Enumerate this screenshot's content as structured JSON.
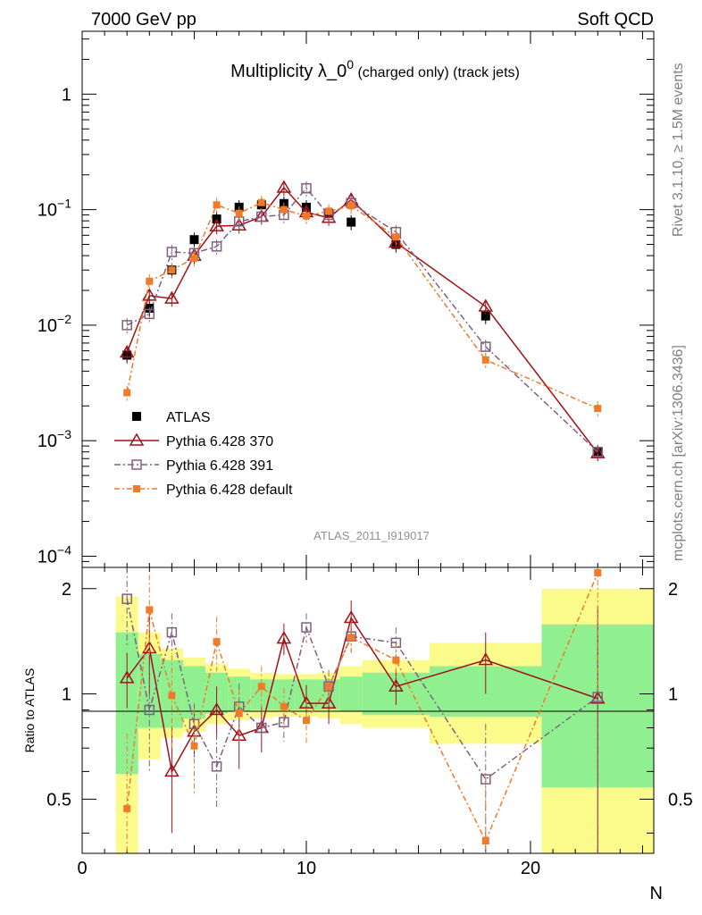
{
  "header": {
    "left": "7000 GeV pp",
    "right": "Soft QCD"
  },
  "side_labels": {
    "rivet": "Rivet 3.1.10, ≥ 1.5M events",
    "mcplots": "mcplots.cern.ch [arXiv:1306.3436]"
  },
  "chart_data": {
    "type": "scatter",
    "title_main": "Multiplicity λ_0",
    "title_sup": "0",
    "title_sub": "(charged only) (track jets)",
    "watermark": "ATLAS_2011_I919017",
    "xlabel": "N",
    "ylabel_ratio": "Ratio to ATLAS",
    "xlim": [
      0,
      25.5
    ],
    "ylim": [
      8e-05,
      3.5
    ],
    "ylim_ratio": [
      0.35,
      2.3
    ],
    "x_ticks": [
      "0",
      "10",
      "20"
    ],
    "y_tick_labels": [
      {
        "v": 1,
        "base": "1",
        "exp": ""
      },
      {
        "v": 0.1,
        "base": "10",
        "exp": "−1"
      },
      {
        "v": 0.01,
        "base": "10",
        "exp": "−2"
      },
      {
        "v": 0.001,
        "base": "10",
        "exp": "−3"
      },
      {
        "v": 0.0001,
        "base": "10",
        "exp": "−4"
      }
    ],
    "ratio_ticks": [
      "0.5",
      "1",
      "2"
    ],
    "bins": [
      [
        1.5,
        2.5
      ],
      [
        2.5,
        3.5
      ],
      [
        3.5,
        4.5
      ],
      [
        4.5,
        5.5
      ],
      [
        5.5,
        6.5
      ],
      [
        6.5,
        7.5
      ],
      [
        7.5,
        8.5
      ],
      [
        8.5,
        9.5
      ],
      [
        9.5,
        10.5
      ],
      [
        10.5,
        11.5
      ],
      [
        11.5,
        12.5
      ],
      [
        12.5,
        15.5
      ],
      [
        15.5,
        20.5
      ],
      [
        20.5,
        25.5
      ]
    ],
    "band_inner": [
      [
        0.59,
        1.5
      ],
      [
        0.8,
        1.3
      ],
      [
        0.8,
        1.25
      ],
      [
        0.85,
        1.2
      ],
      [
        0.88,
        1.15
      ],
      [
        0.89,
        1.12
      ],
      [
        0.9,
        1.1
      ],
      [
        0.9,
        1.1
      ],
      [
        0.9,
        1.1
      ],
      [
        0.9,
        1.1
      ],
      [
        0.89,
        1.12
      ],
      [
        0.87,
        1.15
      ],
      [
        0.86,
        1.2
      ],
      [
        0.54,
        1.58
      ]
    ],
    "band_outer": [
      [
        0.35,
        1.9
      ],
      [
        0.65,
        1.5
      ],
      [
        0.75,
        1.35
      ],
      [
        0.78,
        1.27
      ],
      [
        0.82,
        1.22
      ],
      [
        0.84,
        1.18
      ],
      [
        0.85,
        1.15
      ],
      [
        0.86,
        1.14
      ],
      [
        0.86,
        1.14
      ],
      [
        0.85,
        1.15
      ],
      [
        0.82,
        1.2
      ],
      [
        0.8,
        1.25
      ],
      [
        0.72,
        1.4
      ],
      [
        0.35,
        2.0
      ]
    ],
    "series": [
      {
        "name": "ATLAS",
        "color": "#000000",
        "marker": "filled-square",
        "dash": "",
        "x": [
          2,
          3,
          4,
          5,
          6,
          7,
          8,
          9,
          10,
          11,
          12,
          14,
          18,
          23
        ],
        "y": [
          0.0055,
          0.014,
          0.03,
          0.055,
          0.083,
          0.105,
          0.11,
          0.113,
          0.105,
          0.093,
          0.078,
          0.05,
          0.012,
          0.0008
        ]
      },
      {
        "name": "Pythia 6.428 370",
        "color": "#a01018",
        "marker": "open-triangle",
        "dash": "",
        "x": [
          2,
          3,
          4,
          5,
          6,
          7,
          8,
          9,
          10,
          11,
          12,
          14,
          18,
          23
        ],
        "y": [
          0.0058,
          0.018,
          0.017,
          0.04,
          0.072,
          0.073,
          0.087,
          0.155,
          0.095,
          0.085,
          0.122,
          0.052,
          0.0145,
          0.00078
        ],
        "ratio": [
          1.11,
          1.35,
          0.6,
          0.78,
          0.9,
          0.76,
          0.8,
          1.44,
          0.94,
          0.94,
          1.65,
          1.05,
          1.25,
          0.97
        ],
        "ratio_err": [
          0.2,
          0.35,
          0.2,
          0.12,
          0.15,
          0.15,
          0.12,
          0.15,
          0.12,
          0.12,
          0.2,
          0.12,
          0.25,
          0.8
        ]
      },
      {
        "name": "Pythia 6.428 391",
        "color": "#806080",
        "marker": "open-square",
        "dash": "7,3,2,3",
        "x": [
          2,
          3,
          4,
          5,
          6,
          7,
          8,
          9,
          10,
          11,
          12,
          14,
          18,
          23
        ],
        "y": [
          0.01,
          0.0125,
          0.043,
          0.042,
          0.048,
          0.079,
          0.087,
          0.09,
          0.153,
          0.09,
          0.114,
          0.064,
          0.0065,
          0.0008
        ],
        "ratio": [
          1.87,
          0.9,
          1.5,
          0.82,
          0.62,
          0.92,
          0.8,
          0.83,
          1.55,
          1.05,
          1.46,
          1.4,
          0.57,
          0.98
        ],
        "ratio_err": [
          0.5,
          0.3,
          0.2,
          0.12,
          0.15,
          0.15,
          0.12,
          0.1,
          0.15,
          0.12,
          0.15,
          0.15,
          0.25,
          0.8
        ]
      },
      {
        "name": "Pythia 6.428 default",
        "color": "#f07a28",
        "marker": "filled-small-square",
        "dash": "6,3,2,3",
        "x": [
          2,
          3,
          4,
          5,
          6,
          7,
          8,
          9,
          10,
          11,
          12,
          14,
          18,
          23
        ],
        "y": [
          0.0026,
          0.024,
          0.03,
          0.038,
          0.11,
          0.093,
          0.115,
          0.1,
          0.088,
          0.097,
          0.108,
          0.058,
          0.005,
          0.0019
        ],
        "ratio": [
          0.47,
          1.74,
          0.99,
          0.71,
          1.41,
          0.88,
          1.05,
          0.92,
          0.84,
          1.05,
          1.45,
          1.25,
          0.38,
          2.22
        ],
        "ratio_err": [
          0.3,
          0.45,
          0.3,
          0.2,
          0.25,
          0.15,
          0.15,
          0.12,
          0.12,
          0.12,
          0.15,
          0.15,
          0.2,
          1.2
        ]
      }
    ]
  }
}
